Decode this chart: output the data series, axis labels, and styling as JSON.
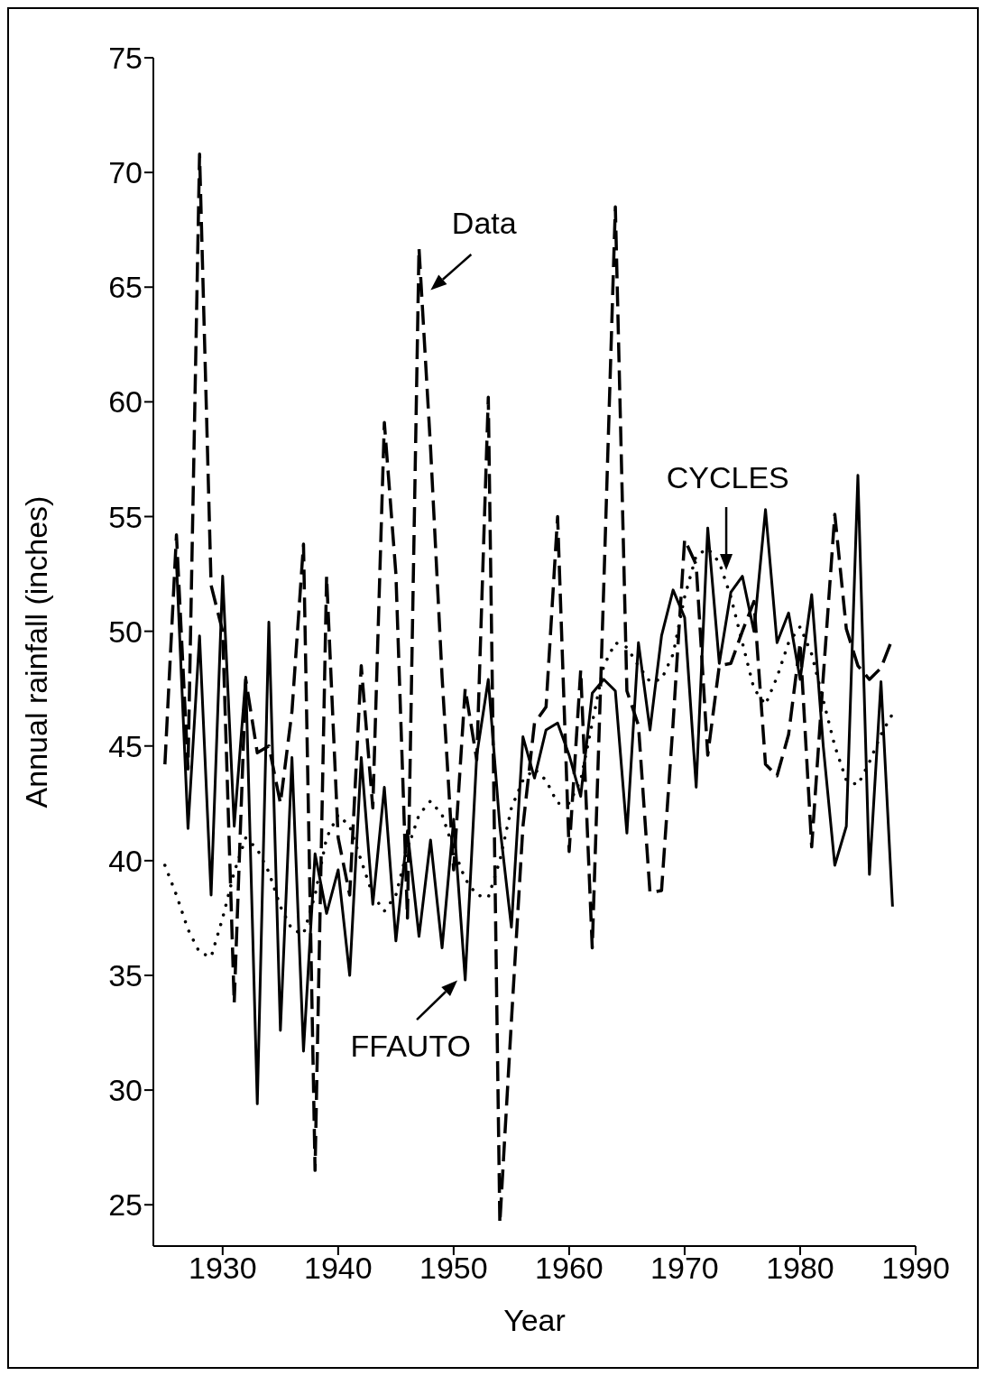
{
  "chart_data": {
    "type": "line",
    "xlabel": "Year",
    "ylabel": "Annual rainfall (inches)",
    "x": [
      1925,
      1926,
      1927,
      1928,
      1929,
      1930,
      1931,
      1932,
      1933,
      1934,
      1935,
      1936,
      1937,
      1938,
      1939,
      1940,
      1941,
      1942,
      1943,
      1944,
      1945,
      1946,
      1947,
      1948,
      1949,
      1950,
      1951,
      1952,
      1953,
      1954,
      1955,
      1956,
      1957,
      1958,
      1959,
      1960,
      1961,
      1962,
      1963,
      1964,
      1965,
      1966,
      1967,
      1968,
      1969,
      1970,
      1971,
      1972,
      1973,
      1974,
      1975,
      1976,
      1977,
      1978,
      1979,
      1980,
      1981,
      1982,
      1983,
      1984,
      1985,
      1986,
      1987,
      1988
    ],
    "series": [
      {
        "color": "#000000",
        "line_style": "dashed",
        "values": [
          44.2,
          54.2,
          44,
          70.8,
          52,
          50,
          33.8,
          47.9,
          44.7,
          45,
          42.5,
          46.5,
          53.8,
          26.5,
          52.4,
          41,
          38.5,
          48.5,
          42.3,
          59.1,
          52.5,
          37.5,
          66.7,
          58,
          48,
          39.6,
          47.5,
          44.4,
          60.2,
          24.2,
          33,
          41.5,
          46,
          46.7,
          55,
          40.4,
          48.3,
          36.2,
          52,
          68.5,
          47.4,
          45.9,
          38.6,
          38.7,
          46,
          54,
          52.9,
          44.6,
          48.5,
          48.6,
          50,
          51.3,
          44.2,
          43.7,
          45.5,
          49.5,
          40.6,
          48,
          55.1,
          50.1,
          48.5,
          47.9,
          48.4,
          49.7
        ]
      },
      {
        "color": "#000000",
        "line_style": "solid",
        "values": [
          null,
          53,
          41.4,
          49.8,
          38.5,
          52.4,
          41.5,
          48,
          29.4,
          50.4,
          32.6,
          44.5,
          31.7,
          40.3,
          37.7,
          39.6,
          35,
          44.5,
          38.1,
          43.2,
          36.5,
          41.3,
          36.7,
          40.9,
          36.2,
          41.8,
          34.8,
          44.6,
          47.9,
          41.5,
          37.1,
          45.4,
          43.6,
          45.7,
          46,
          44.6,
          42.8,
          47.3,
          47.9,
          47.4,
          41.2,
          49.5,
          45.7,
          49.8,
          51.8,
          50.6,
          43.2,
          54.5,
          48.6,
          51.7,
          52.4,
          50,
          55.3,
          49.5,
          50.8,
          47.9,
          51.6,
          45,
          39.8,
          41.5,
          56.8,
          39.4,
          47.8,
          38
        ]
      },
      {
        "color": "#000000",
        "line_style": "dotted",
        "values": [
          39.8,
          38.5,
          37,
          36,
          35.8,
          37.5,
          39.5,
          41,
          40.5,
          39.5,
          38,
          37,
          36.8,
          38.5,
          41,
          42,
          41.5,
          40,
          38.5,
          37.8,
          38.5,
          40.5,
          42,
          42.6,
          42,
          40.5,
          39.2,
          38.5,
          38.4,
          40,
          42.3,
          43.5,
          44,
          43.5,
          42.5,
          42.5,
          43.5,
          46,
          48.5,
          49.5,
          49.3,
          48.5,
          47.8,
          47.9,
          49,
          51.5,
          53.3,
          53.6,
          53,
          51.5,
          49.5,
          47.5,
          46.8,
          48,
          49.5,
          50.2,
          49,
          47,
          45,
          43.5,
          43.3,
          44.3,
          45.5,
          46.4
        ]
      }
    ],
    "xlim": [
      1924,
      1990
    ],
    "ylim": [
      23.2,
      75
    ],
    "xticks": [
      1930,
      1940,
      1950,
      1960,
      1970,
      1980,
      1990
    ],
    "yticks": [
      25,
      30,
      35,
      40,
      45,
      50,
      55,
      60,
      65,
      70,
      75
    ],
    "grid": false,
    "legend": false,
    "marker": "none",
    "annotations": [
      "Data",
      "CYCLES",
      "FFAUTO"
    ]
  }
}
